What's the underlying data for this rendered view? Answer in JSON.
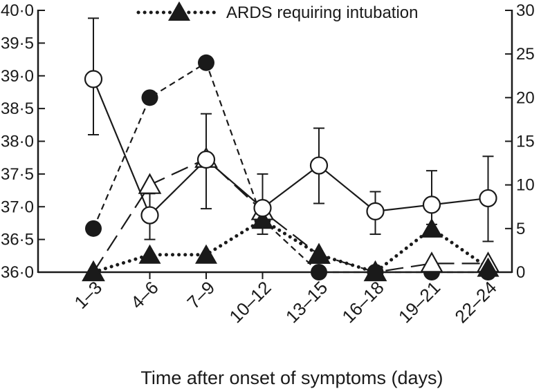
{
  "chart_data": {
    "type": "line",
    "categories": [
      "1–3",
      "4–6",
      "7–9",
      "10–12",
      "13–15",
      "16–18",
      "19–21",
      "22–24"
    ],
    "xlabel": "Time after onset of symptoms (days)",
    "ylabel_left": "",
    "ylabel_right": "",
    "y_left_lim": [
      36.0,
      40.0
    ],
    "y_right_lim": [
      0,
      30
    ],
    "y_left_ticks": [
      "36·0",
      "36·5",
      "37·0",
      "37·5",
      "38·0",
      "38·5",
      "39·0",
      "39·5",
      "40·0"
    ],
    "y_left_tick_values": [
      36.0,
      36.5,
      37.0,
      37.5,
      38.0,
      38.5,
      39.0,
      39.5,
      40.0
    ],
    "y_right_ticks": [
      "0",
      "5",
      "10",
      "15",
      "20",
      "25",
      "30"
    ],
    "y_right_tick_values": [
      0,
      5,
      10,
      15,
      20,
      25,
      30
    ],
    "grid": false,
    "legend_position": "top-center",
    "series": [
      {
        "key": "temperature",
        "axis": "left",
        "marker": "open-circle",
        "line_style": "solid",
        "values": [
          38.95,
          36.87,
          37.72,
          36.98,
          37.63,
          36.93,
          37.03,
          37.13
        ],
        "error_low": [
          38.1,
          36.5,
          36.97,
          36.58,
          37.05,
          36.58,
          36.73,
          36.47
        ],
        "error_high": [
          39.88,
          37.2,
          38.42,
          37.5,
          38.2,
          37.23,
          37.55,
          37.77
        ]
      },
      {
        "key": "filled-circle-series",
        "axis": "right",
        "marker": "filled-circle",
        "line_style": "short-dash",
        "values": [
          5,
          20,
          24,
          6,
          0,
          0,
          0,
          0
        ]
      },
      {
        "key": "open-triangle-series",
        "axis": "right",
        "marker": "open-triangle",
        "line_style": "long-dash",
        "values": [
          0,
          10,
          13,
          7,
          2,
          0,
          1,
          1
        ]
      },
      {
        "name": "ARDS requiring intubation",
        "key": "ards",
        "axis": "right",
        "marker": "filled-triangle",
        "line_style": "dotted",
        "values": [
          0,
          2,
          2,
          6,
          2,
          0,
          5,
          0.5
        ]
      }
    ]
  }
}
